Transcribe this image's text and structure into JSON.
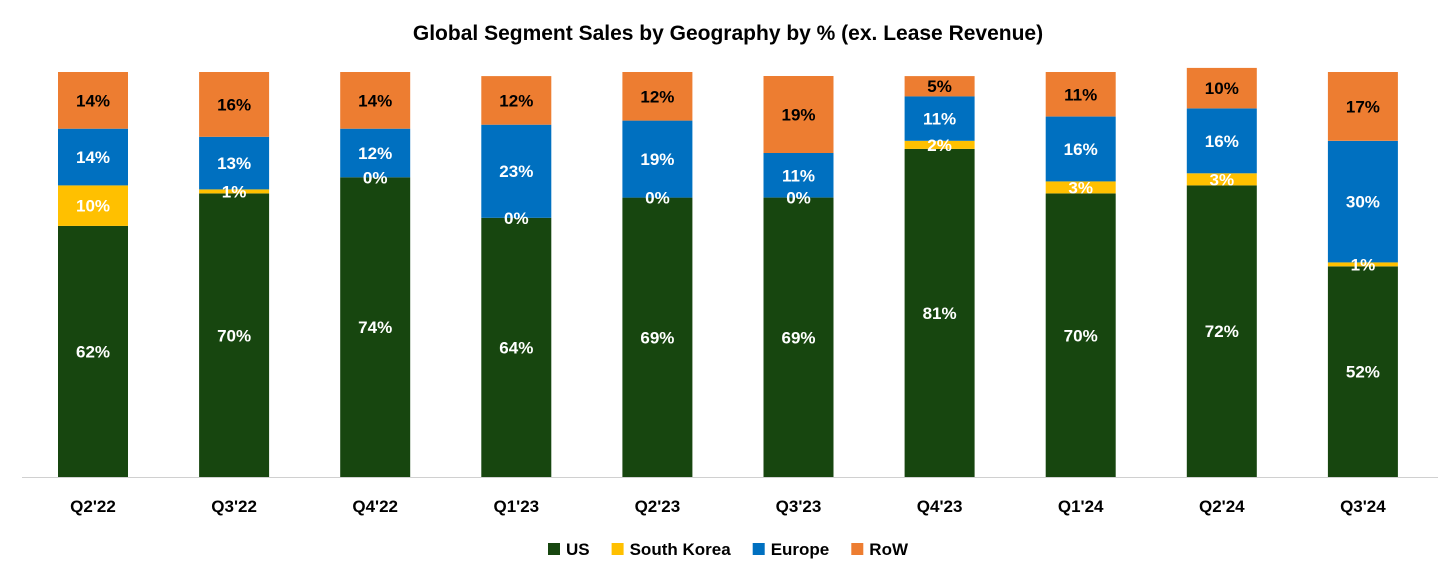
{
  "chart_data": {
    "type": "bar",
    "stacked": true,
    "title": "Global Segment Sales by Geography by % (ex. Lease Revenue)",
    "xlabel": "",
    "ylabel": "",
    "ylim": [
      0,
      100
    ],
    "grid": false,
    "legend_position": "bottom",
    "categories": [
      "Q2'22",
      "Q3'22",
      "Q4'22",
      "Q1'23",
      "Q2'23",
      "Q3'23",
      "Q4'23",
      "Q1'24",
      "Q2'24",
      "Q3'24"
    ],
    "series": [
      {
        "name": "US",
        "color": "#17460f",
        "label_color": "#ffffff",
        "values": [
          62,
          70,
          74,
          64,
          69,
          69,
          81,
          70,
          72,
          52
        ],
        "labels": [
          "62%",
          "70%",
          "74%",
          "64%",
          "69%",
          "69%",
          "81%",
          "70%",
          "72%",
          "52%"
        ]
      },
      {
        "name": "South Korea",
        "color": "#ffc000",
        "label_color": "#ffffff",
        "values": [
          10,
          1,
          0,
          0,
          0,
          0,
          2,
          3,
          3,
          1
        ],
        "labels": [
          "10%",
          "1%",
          "0%",
          "0%",
          "0%",
          "0%",
          "2%",
          "3%",
          "3%",
          "1%"
        ]
      },
      {
        "name": "Europe",
        "color": "#0070c0",
        "label_color": "#ffffff",
        "values": [
          14,
          13,
          12,
          23,
          19,
          11,
          11,
          16,
          16,
          30
        ],
        "labels": [
          "14%",
          "13%",
          "12%",
          "23%",
          "19%",
          "11%",
          "11%",
          "16%",
          "16%",
          "30%"
        ]
      },
      {
        "name": "RoW",
        "color": "#ed7d31",
        "label_color": "#000000",
        "values": [
          14,
          16,
          14,
          12,
          12,
          19,
          5,
          11,
          10,
          17
        ],
        "labels": [
          "14%",
          "16%",
          "14%",
          "12%",
          "12%",
          "19%",
          "5%",
          "11%",
          "10%",
          "17%"
        ]
      }
    ]
  }
}
